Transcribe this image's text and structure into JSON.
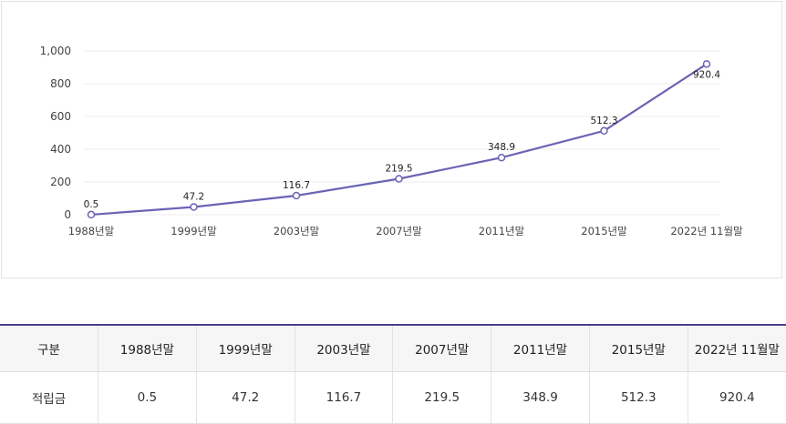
{
  "chart_data": {
    "type": "line",
    "categories": [
      "1988년말",
      "1999년말",
      "2003년말",
      "2007년말",
      "2011년말",
      "2015년말",
      "2022년 11월말"
    ],
    "series": [
      {
        "values": [
          0.5,
          47.2,
          116.7,
          219.5,
          348.9,
          512.3,
          920.4
        ]
      }
    ],
    "data_labels": [
      "0.5",
      "47.2",
      "116.7",
      "219.5",
      "348.9",
      "512.3",
      "920.4"
    ],
    "y_ticks": [
      "0",
      "200",
      "400",
      "600",
      "800",
      "1,000"
    ],
    "y_tick_values": [
      0,
      200,
      400,
      600,
      800,
      1000
    ],
    "ylim": [
      0,
      1000
    ],
    "grid": true,
    "colors": {
      "line": "#6a63b5",
      "grid": "#eeeeee"
    }
  },
  "table": {
    "header_label": "구분",
    "columns": [
      "1988년말",
      "1999년말",
      "2003년말",
      "2007년말",
      "2011년말",
      "2015년말",
      "2022년 11월말"
    ],
    "row_label": "적립금",
    "values": [
      "0.5",
      "47.2",
      "116.7",
      "219.5",
      "348.9",
      "512.3",
      "920.4"
    ]
  }
}
